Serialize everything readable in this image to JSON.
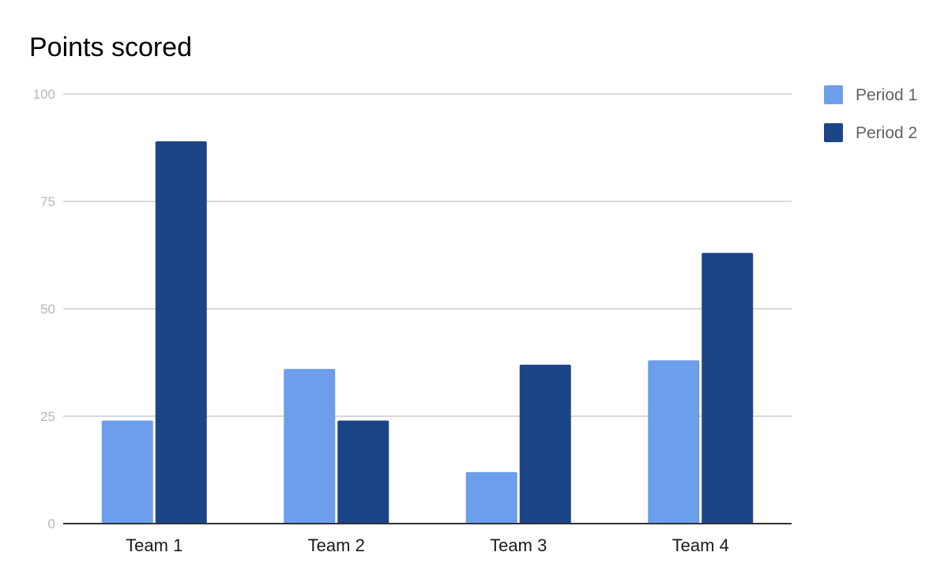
{
  "chart_data": {
    "type": "bar",
    "title": "Points scored",
    "xlabel": "",
    "ylabel": "",
    "categories": [
      "Team 1",
      "Team 2",
      "Team 3",
      "Team 4"
    ],
    "series": [
      {
        "name": "Period 1",
        "values": [
          24,
          36,
          12,
          38
        ],
        "color": "#6d9eeb"
      },
      {
        "name": "Period 2",
        "values": [
          89,
          24,
          37,
          63
        ],
        "color": "#1c4587"
      }
    ],
    "ylim": [
      0,
      100
    ],
    "yticks": [
      0,
      25,
      50,
      75,
      100
    ],
    "grid": true,
    "legend_position": "right"
  }
}
